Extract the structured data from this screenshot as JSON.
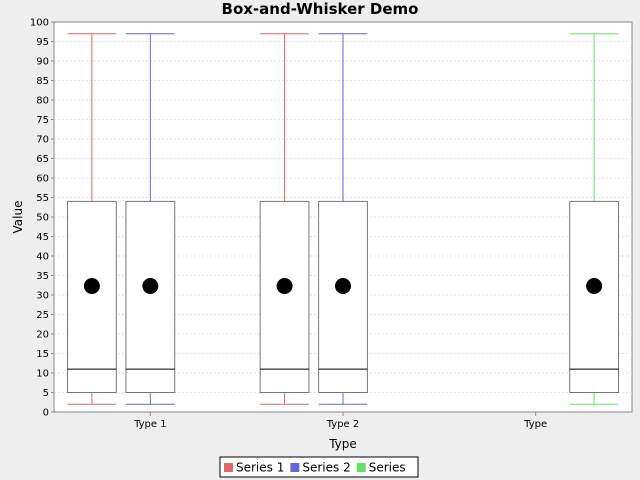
{
  "chart_data": {
    "type": "boxplot",
    "title": "Box-and-Whisker Demo",
    "xlabel": "Type",
    "ylabel": "Value",
    "ylim": [
      0,
      100
    ],
    "yticks": [
      0,
      5,
      10,
      15,
      20,
      25,
      30,
      35,
      40,
      45,
      50,
      55,
      60,
      65,
      70,
      75,
      80,
      85,
      90,
      95,
      100
    ],
    "categories": [
      "Type 1",
      "Type 2",
      "Type"
    ],
    "grid": true,
    "legend_position": "bottom",
    "series": [
      {
        "name": "Series 1",
        "color": "#e06666",
        "boxes": [
          {
            "category": "Type 1",
            "min": 2,
            "q1": 5,
            "median": 11,
            "q3": 54,
            "max": 97,
            "mean": 32.3
          },
          {
            "category": "Type 2",
            "min": 2,
            "q1": 5,
            "median": 11,
            "q3": 54,
            "max": 97,
            "mean": 32.3
          },
          null
        ]
      },
      {
        "name": "Series 2",
        "color": "#6666e0",
        "boxes": [
          {
            "category": "Type 1",
            "min": 2,
            "q1": 5,
            "median": 11,
            "q3": 54,
            "max": 97,
            "mean": 32.3
          },
          {
            "category": "Type 2",
            "min": 2,
            "q1": 5,
            "median": 11,
            "q3": 54,
            "max": 97,
            "mean": 32.3
          },
          null
        ]
      },
      {
        "name": "Series",
        "color": "#66e066",
        "boxes": [
          null,
          null,
          {
            "category": "Type",
            "min": 2,
            "q1": 5,
            "median": 11,
            "q3": 54,
            "max": 97,
            "mean": 32.3
          }
        ]
      }
    ]
  }
}
